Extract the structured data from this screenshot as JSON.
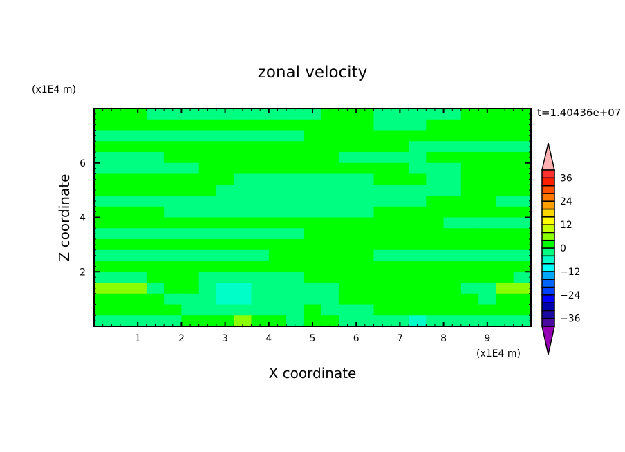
{
  "chart_data": {
    "type": "heatmap",
    "title": "zonal velocity",
    "xlabel": "X coordinate",
    "ylabel": "Z coordinate",
    "x_unit": "(x1E4 m)",
    "y_unit": "(x1E4 m)",
    "time_label": "t=1.40436e+07",
    "xlim": [
      0,
      10
    ],
    "ylim": [
      0,
      8
    ],
    "x_ticks": [
      1,
      2,
      3,
      4,
      5,
      6,
      7,
      8,
      9
    ],
    "y_ticks": [
      2,
      4,
      6
    ],
    "grid": false,
    "x_centers": [
      0.2,
      0.6,
      1.0,
      1.4,
      1.8,
      2.2,
      2.6,
      3.0,
      3.4,
      3.8,
      4.2,
      4.6,
      5.0,
      5.4,
      5.8,
      6.2,
      6.6,
      7.0,
      7.4,
      7.8,
      8.2,
      8.6,
      9.0,
      9.4,
      9.8
    ],
    "z_centers": [
      7.8,
      7.4,
      7.0,
      6.6,
      6.2,
      5.8,
      5.4,
      5.0,
      4.6,
      4.2,
      3.8,
      3.4,
      3.0,
      2.6,
      2.2,
      1.8,
      1.4,
      1.0,
      0.6,
      0.2
    ],
    "values": [
      [
        2,
        2,
        2,
        -2,
        -2,
        -2,
        -2,
        -2,
        -2,
        -2,
        -2,
        -2,
        -2,
        2,
        2,
        2,
        -2,
        -2,
        -2,
        -2,
        -2,
        2,
        2,
        2,
        2
      ],
      [
        2,
        2,
        2,
        2,
        2,
        2,
        2,
        2,
        2,
        2,
        2,
        2,
        2,
        2,
        2,
        2,
        -2,
        -2,
        -2,
        2,
        2,
        2,
        2,
        2,
        2
      ],
      [
        -2,
        -2,
        -2,
        -2,
        -2,
        -2,
        -2,
        -2,
        -2,
        -2,
        -2,
        -2,
        2,
        2,
        2,
        2,
        2,
        2,
        2,
        2,
        2,
        2,
        2,
        2,
        2
      ],
      [
        2,
        2,
        2,
        2,
        2,
        2,
        2,
        2,
        2,
        2,
        2,
        2,
        2,
        2,
        2,
        2,
        2,
        2,
        -2,
        -2,
        -2,
        -2,
        -2,
        -2,
        -2
      ],
      [
        -2,
        -2,
        -2,
        -2,
        2,
        2,
        2,
        2,
        2,
        2,
        2,
        2,
        2,
        2,
        -2,
        -2,
        -2,
        -2,
        -2,
        2,
        2,
        2,
        2,
        2,
        2
      ],
      [
        -2,
        -2,
        -2,
        -2,
        -2,
        -2,
        2,
        2,
        2,
        2,
        2,
        2,
        2,
        2,
        2,
        2,
        2,
        2,
        -2,
        -2,
        -2,
        2,
        2,
        2,
        2
      ],
      [
        2,
        2,
        2,
        2,
        2,
        2,
        2,
        2,
        -2,
        -2,
        -2,
        -2,
        -2,
        -2,
        -2,
        -2,
        2,
        2,
        2,
        -2,
        -2,
        2,
        2,
        2,
        2
      ],
      [
        2,
        2,
        2,
        2,
        2,
        2,
        2,
        -2,
        -2,
        -2,
        -2,
        -2,
        -2,
        -2,
        -2,
        -2,
        -2,
        -2,
        -2,
        -2,
        -2,
        2,
        2,
        2,
        2
      ],
      [
        -2,
        -2,
        -2,
        -2,
        -2,
        -2,
        -2,
        -2,
        -2,
        -2,
        -2,
        -2,
        -2,
        -2,
        -2,
        -2,
        -2,
        -2,
        -2,
        2,
        2,
        2,
        2,
        -2,
        -2
      ],
      [
        2,
        2,
        2,
        2,
        -2,
        -2,
        -2,
        -2,
        -2,
        -2,
        -2,
        -2,
        -2,
        -2,
        -2,
        -2,
        2,
        2,
        2,
        2,
        2,
        2,
        2,
        2,
        2
      ],
      [
        2,
        2,
        2,
        2,
        2,
        2,
        2,
        2,
        2,
        2,
        2,
        2,
        2,
        2,
        2,
        2,
        2,
        2,
        2,
        2,
        -2,
        -2,
        -2,
        -2,
        -2
      ],
      [
        -2,
        -2,
        -2,
        -2,
        -2,
        -2,
        -2,
        -2,
        -2,
        -2,
        -2,
        -2,
        2,
        2,
        2,
        2,
        2,
        2,
        2,
        2,
        2,
        2,
        2,
        2,
        2
      ],
      [
        2,
        2,
        2,
        2,
        2,
        2,
        2,
        2,
        2,
        2,
        2,
        2,
        2,
        2,
        2,
        2,
        2,
        2,
        2,
        2,
        2,
        2,
        2,
        2,
        2
      ],
      [
        -2,
        -2,
        -2,
        -2,
        -2,
        -2,
        -2,
        -2,
        -2,
        -2,
        2,
        2,
        2,
        2,
        2,
        2,
        -2,
        -2,
        -2,
        -2,
        -2,
        -2,
        -2,
        -2,
        -2
      ],
      [
        2,
        2,
        2,
        2,
        2,
        2,
        2,
        2,
        2,
        2,
        2,
        2,
        2,
        2,
        2,
        2,
        2,
        2,
        2,
        2,
        2,
        2,
        2,
        2,
        2
      ],
      [
        -2,
        -2,
        -2,
        2,
        2,
        2,
        -2,
        -2,
        -2,
        -2,
        -2,
        -2,
        2,
        2,
        2,
        2,
        2,
        2,
        2,
        2,
        2,
        2,
        2,
        2,
        -2
      ],
      [
        6,
        6,
        6,
        -2,
        2,
        2,
        -2,
        -6,
        -6,
        -2,
        -2,
        -2,
        -2,
        -2,
        2,
        2,
        2,
        2,
        2,
        2,
        2,
        -2,
        -2,
        6,
        6
      ],
      [
        2,
        2,
        2,
        2,
        -2,
        -2,
        -2,
        -6,
        -6,
        -2,
        -2,
        -2,
        -2,
        -2,
        2,
        2,
        2,
        2,
        2,
        2,
        2,
        2,
        -2,
        2,
        2
      ],
      [
        2,
        2,
        2,
        2,
        2,
        -2,
        -2,
        -2,
        -2,
        -2,
        -2,
        -2,
        2,
        -2,
        -2,
        -2,
        2,
        2,
        2,
        2,
        2,
        2,
        2,
        2,
        2
      ],
      [
        -2,
        -2,
        -2,
        -2,
        -2,
        2,
        2,
        2,
        6,
        2,
        2,
        -2,
        2,
        2,
        -2,
        -2,
        -2,
        -2,
        -6,
        -2,
        -2,
        -2,
        -2,
        -2,
        -2
      ]
    ],
    "colorbar": {
      "levels": [
        -40,
        -36,
        -32,
        -28,
        -24,
        -20,
        -16,
        -12,
        -8,
        -4,
        0,
        4,
        8,
        12,
        16,
        20,
        24,
        28,
        32,
        36,
        40
      ],
      "tick_labels": [
        "36",
        "24",
        "12",
        "0",
        "−12",
        "−24",
        "−36"
      ],
      "tick_values": [
        36,
        24,
        12,
        0,
        -12,
        -24,
        -36
      ],
      "colors": [
        "#4b0aa0",
        "#1a0aa0",
        "#0000aa",
        "#0000ff",
        "#0040ff",
        "#0064ff",
        "#00a8ff",
        "#00ffff",
        "#00ffc8",
        "#00ff80",
        "#00ff00",
        "#8cff00",
        "#c8ff00",
        "#ffff00",
        "#ffd700",
        "#ffa000",
        "#ff7800",
        "#ff5000",
        "#ff2000",
        "#ff3030"
      ],
      "over_color": "#ffb0b0",
      "under_color": "#9600b4",
      "extend": "both"
    }
  }
}
